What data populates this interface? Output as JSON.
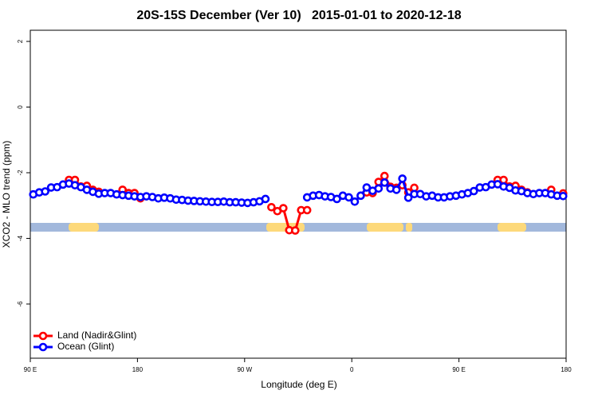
{
  "chart_data": {
    "type": "line",
    "title": "20S-15S December (Ver 10)   2015-01-01 to 2020-12-18",
    "x_label": "Longitude (deg E)",
    "y_label": "XCO2 - MLO trend (ppm)",
    "x": [
      92.5,
      97.5,
      102.5,
      107.5,
      112.5,
      117.5,
      122.5,
      127.5,
      132.5,
      137.5,
      142.5,
      147.5,
      152.5,
      157.5,
      162.5,
      167.5,
      172.5,
      177.5,
      182.5,
      187.5,
      192.5,
      197.5,
      202.5,
      207.5,
      212.5,
      217.5,
      222.5,
      227.5,
      232.5,
      237.5,
      242.5,
      247.5,
      252.5,
      257.5,
      262.5,
      267.5,
      272.5,
      277.5,
      282.5,
      287.5,
      292.5,
      297.5,
      302.5,
      307.5,
      312.5,
      317.5,
      322.5,
      327.5,
      332.5,
      337.5,
      342.5,
      347.5,
      352.5,
      357.5,
      362.5,
      367.5,
      372.5,
      377.5,
      382.5,
      387.5,
      392.5,
      397.5,
      402.5,
      407.5,
      412.5,
      417.5,
      422.5,
      427.5,
      432.5,
      437.5,
      442.5,
      447.5,
      452.5,
      457.5,
      462.5,
      467.5,
      472.5,
      477.5,
      482.5,
      487.5,
      492.5,
      497.5,
      502.5,
      507.5,
      512.5,
      517.5,
      522.5,
      527.5,
      532.5,
      537.5
    ],
    "series": [
      {
        "name": "Land (Nadir&Glint)",
        "color": "#ff0000",
        "values": [
          null,
          null,
          null,
          null,
          null,
          null,
          -2.22,
          -2.22,
          -2.42,
          -2.4,
          -2.52,
          -2.58,
          null,
          null,
          null,
          -2.52,
          -2.62,
          -2.62,
          -2.78,
          null,
          null,
          null,
          null,
          null,
          null,
          null,
          null,
          null,
          null,
          null,
          null,
          null,
          null,
          null,
          null,
          null,
          null,
          null,
          null,
          null,
          -3.05,
          -3.17,
          -3.08,
          -3.75,
          -3.76,
          -3.14,
          -3.14,
          null,
          null,
          null,
          null,
          null,
          null,
          null,
          null,
          null,
          -2.6,
          -2.62,
          -2.28,
          -2.1,
          -2.43,
          -2.46,
          -2.38,
          -2.6,
          -2.46,
          null,
          null,
          null,
          null,
          null,
          null,
          null,
          null,
          null,
          null,
          null,
          null,
          null,
          -2.22,
          -2.22,
          -2.42,
          -2.4,
          -2.52,
          -2.6,
          null,
          null,
          null,
          -2.52,
          null,
          -2.63
        ]
      },
      {
        "name": "Ocean (Glint)",
        "color": "#0000ff",
        "values": [
          -2.66,
          -2.6,
          -2.57,
          -2.45,
          -2.44,
          -2.36,
          -2.33,
          -2.38,
          -2.44,
          -2.52,
          -2.58,
          -2.64,
          -2.62,
          -2.62,
          -2.66,
          -2.68,
          -2.7,
          -2.72,
          -2.74,
          -2.72,
          -2.74,
          -2.78,
          -2.76,
          -2.78,
          -2.82,
          -2.83,
          -2.85,
          -2.86,
          -2.87,
          -2.88,
          -2.89,
          -2.89,
          -2.88,
          -2.9,
          -2.9,
          -2.91,
          -2.92,
          -2.9,
          -2.87,
          -2.8,
          null,
          null,
          null,
          null,
          null,
          null,
          -2.75,
          -2.7,
          -2.68,
          -2.72,
          -2.74,
          -2.8,
          -2.7,
          -2.75,
          -2.88,
          -2.7,
          -2.45,
          -2.55,
          -2.48,
          -2.3,
          -2.48,
          -2.52,
          -2.18,
          -2.76,
          -2.65,
          -2.65,
          -2.72,
          -2.7,
          -2.75,
          -2.75,
          -2.72,
          -2.7,
          -2.66,
          -2.62,
          -2.56,
          -2.45,
          -2.44,
          -2.36,
          -2.35,
          -2.42,
          -2.46,
          -2.54,
          -2.56,
          -2.62,
          -2.65,
          -2.62,
          -2.62,
          -2.66,
          -2.7,
          -2.71
        ]
      }
    ],
    "xlim": [
      90,
      540
    ],
    "xticks": [
      {
        "value": 90,
        "label": "90 E"
      },
      180,
      {
        "value": 270,
        "label": "90 W"
      },
      {
        "value": 360,
        "label": "0"
      },
      {
        "value": 450,
        "label": "90 E"
      },
      {
        "value": 540,
        "label": "180"
      }
    ],
    "ylim": [
      -7.65,
      2.34
    ],
    "yticks": [
      -6,
      -4,
      -2,
      0,
      2
    ],
    "legend": "bottomleft"
  }
}
